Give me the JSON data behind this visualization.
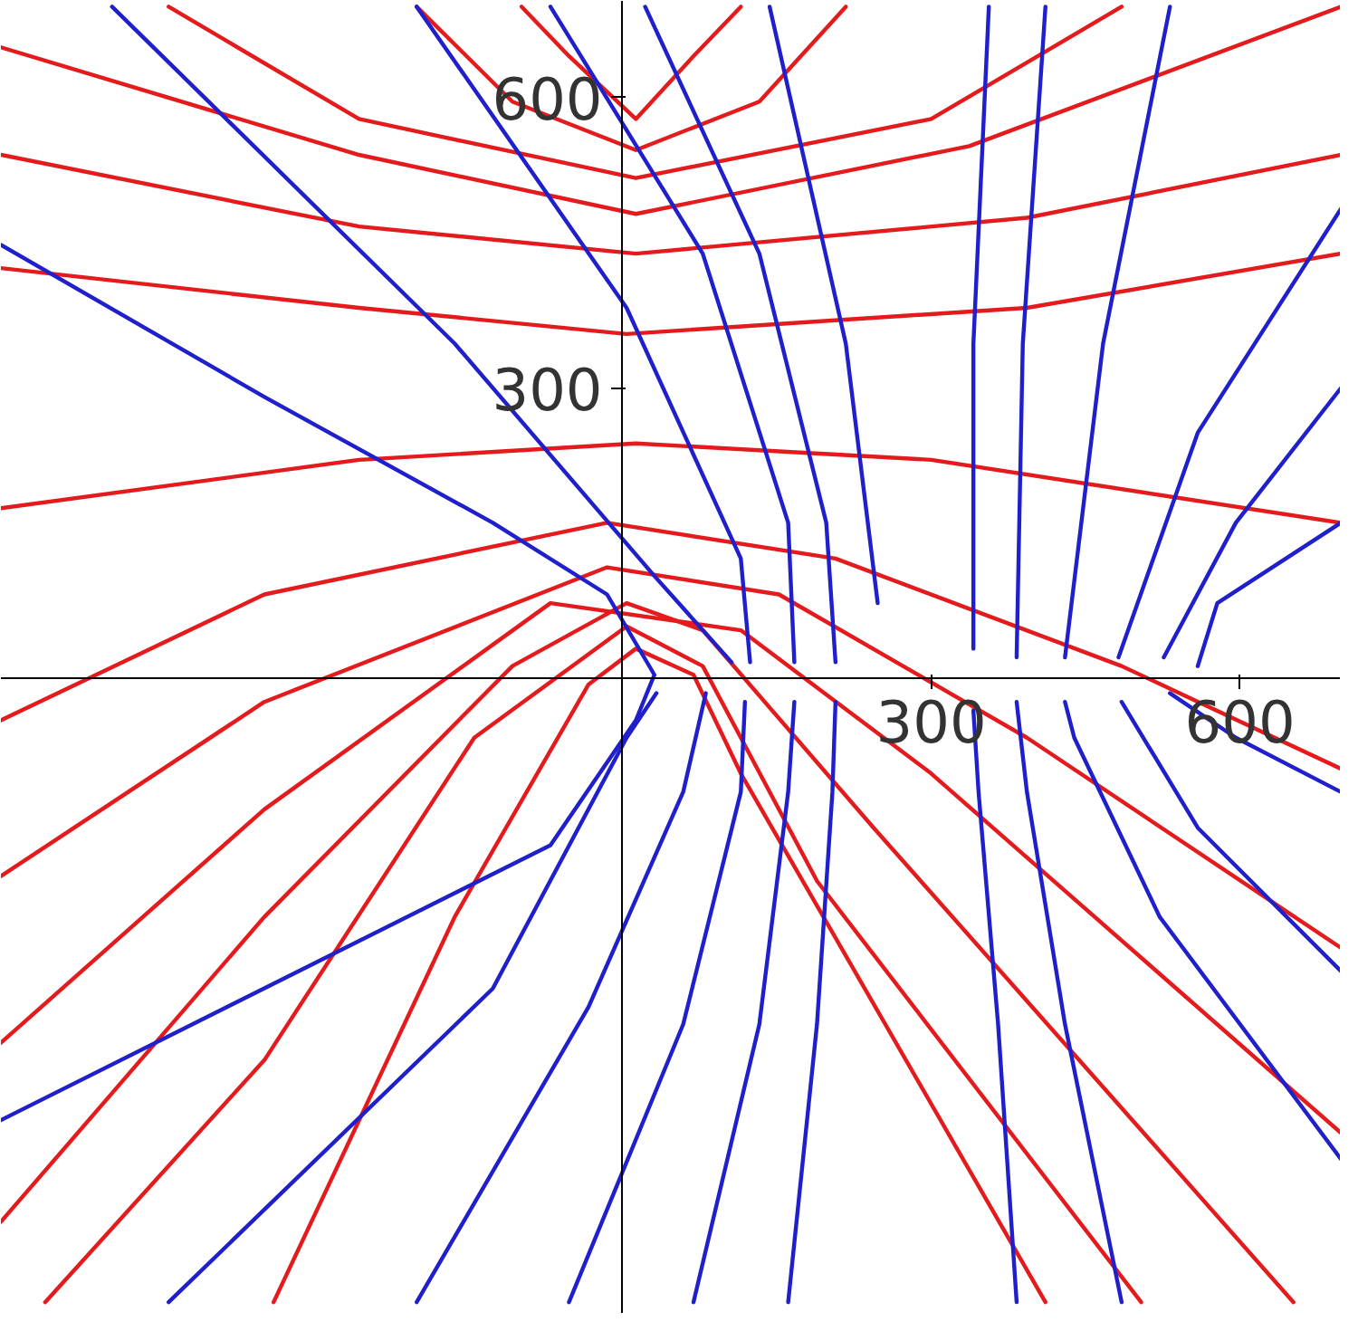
{
  "chart_data": {
    "type": "line",
    "xlim": [
      -604,
      698
    ],
    "ylim": [
      -656,
      700
    ],
    "xticks": [
      300,
      600
    ],
    "yticks": [
      300,
      600
    ],
    "series": [
      {
        "color": "#e41a1c",
        "x": [
          -98,
          -52,
          13,
          69,
          115
        ],
        "values": [
          694,
          643,
          578,
          643,
          694
        ]
      },
      {
        "color": "#e41a1c",
        "x": [
          -200,
          -107,
          13,
          133,
          217
        ],
        "values": [
          694,
          596,
          546,
          596,
          694
        ]
      },
      {
        "color": "#e41a1c",
        "x": [
          -441,
          -256,
          13,
          300,
          485
        ],
        "values": [
          694,
          578,
          517,
          578,
          694
        ]
      },
      {
        "color": "#e41a1c",
        "x": [
          -604,
          -256,
          13,
          337,
          698
        ],
        "values": [
          652,
          541,
          480,
          550,
          694
        ]
      },
      {
        "color": "#e41a1c",
        "x": [
          -604,
          -256,
          13,
          393,
          698
        ],
        "values": [
          541,
          467,
          439,
          476,
          541
        ]
      },
      {
        "color": "#e41a1c",
        "x": [
          -604,
          -256,
          4,
          393,
          698
        ],
        "values": [
          424,
          383,
          356,
          383,
          439
        ]
      },
      {
        "color": "#e41a1c",
        "x": [
          -604,
          -256,
          13,
          300,
          698
        ],
        "values": [
          176,
          226,
          243,
          226,
          161
        ]
      },
      {
        "color": "#e41a1c",
        "x": [
          -604,
          -348,
          -15,
          207,
          485,
          698
        ],
        "values": [
          -43,
          87,
          161,
          124,
          13,
          -93
        ]
      },
      {
        "color": "#e41a1c",
        "x": [
          -604,
          -348,
          -15,
          152,
          393,
          698
        ],
        "values": [
          -204,
          -24,
          115,
          87,
          -61,
          -278
        ]
      },
      {
        "color": "#e41a1c",
        "x": [
          -604,
          -348,
          -70,
          115,
          300,
          698
        ],
        "values": [
          -376,
          -135,
          78,
          50,
          -98,
          -469
        ]
      },
      {
        "color": "#e41a1c",
        "x": [
          -604,
          -348,
          -107,
          4,
          78,
          244,
          652
        ],
        "values": [
          -561,
          -246,
          13,
          78,
          50,
          -154,
          -644
        ]
      },
      {
        "color": "#e41a1c",
        "x": [
          -561,
          -348,
          -144,
          4,
          78,
          189,
          504
        ],
        "values": [
          -644,
          -394,
          -61,
          54,
          13,
          -209,
          -644
        ]
      },
      {
        "color": "#e41a1c",
        "x": [
          -339,
          -163,
          -33,
          13,
          69,
          115,
          411
        ],
        "values": [
          -644,
          -246,
          -6,
          31,
          4,
          -98,
          -644
        ]
      },
      {
        "color": "#1f1fcc",
        "x": [
          -604,
          -348,
          -126,
          -15,
          31,
          13,
          -70,
          -604
        ],
        "values": [
          448,
          291,
          161,
          87,
          4,
          -43,
          -172,
          -456
        ]
      },
      {
        "color": "#1f1fcc",
        "x": [
          -496,
          -163,
          31,
          106
        ],
        "values": [
          694,
          346,
          106,
          17
        ]
      },
      {
        "color": "#1f1fcc",
        "x": [
          -200,
          4,
          115,
          124
        ],
        "values": [
          694,
          383,
          124,
          17
        ]
      },
      {
        "color": "#1f1fcc",
        "x": [
          -70,
          78,
          161,
          167
        ],
        "values": [
          694,
          439,
          161,
          17
        ]
      },
      {
        "color": "#1f1fcc",
        "x": [
          22,
          133,
          198,
          207
        ],
        "values": [
          694,
          439,
          161,
          17
        ]
      },
      {
        "color": "#1f1fcc",
        "x": [
          143,
          217,
          248
        ],
        "values": [
          694,
          346,
          78
        ]
      },
      {
        "color": "#1f1fcc",
        "x": [
          356,
          341,
          341
        ],
        "values": [
          694,
          346,
          31
        ]
      },
      {
        "color": "#1f1fcc",
        "x": [
          411,
          389,
          383
        ],
        "values": [
          694,
          346,
          22
        ]
      },
      {
        "color": "#1f1fcc",
        "x": [
          532,
          467,
          430
        ],
        "values": [
          694,
          346,
          22
        ]
      },
      {
        "color": "#1f1fcc",
        "x": [
          698,
          559,
          482
        ],
        "values": [
          485,
          254,
          22
        ]
      },
      {
        "color": "#1f1fcc",
        "x": [
          698,
          596,
          526
        ],
        "values": [
          300,
          161,
          22
        ]
      },
      {
        "color": "#1f1fcc",
        "x": [
          698,
          578,
          559
        ],
        "values": [
          161,
          78,
          13
        ]
      },
      {
        "color": "#1f1fcc",
        "x": [
          -441,
          -126,
          4,
          33
        ],
        "values": [
          -644,
          -320,
          -61,
          -15
        ]
      },
      {
        "color": "#1f1fcc",
        "x": [
          -200,
          -33,
          59,
          81
        ],
        "values": [
          -644,
          -339,
          -117,
          -15
        ]
      },
      {
        "color": "#1f1fcc",
        "x": [
          -52,
          59,
          115,
          119
        ],
        "values": [
          -644,
          -357,
          -117,
          -24
        ]
      },
      {
        "color": "#1f1fcc",
        "x": [
          69,
          133,
          161,
          167
        ],
        "values": [
          -644,
          -357,
          -117,
          -24
        ]
      },
      {
        "color": "#1f1fcc",
        "x": [
          161,
          189,
          204,
          207
        ],
        "values": [
          -644,
          -357,
          -117,
          -24
        ]
      },
      {
        "color": "#1f1fcc",
        "x": [
          383,
          365,
          346,
          341
        ],
        "values": [
          -644,
          -357,
          -117,
          -33
        ]
      },
      {
        "color": "#1f1fcc",
        "x": [
          485,
          430,
          393,
          383
        ],
        "values": [
          -644,
          -357,
          -117,
          -24
        ]
      },
      {
        "color": "#1f1fcc",
        "x": [
          698,
          522,
          439,
          430
        ],
        "values": [
          -496,
          -246,
          -61,
          -24
        ]
      },
      {
        "color": "#1f1fcc",
        "x": [
          698,
          559,
          485
        ],
        "values": [
          -302,
          -154,
          -24
        ]
      },
      {
        "color": "#1f1fcc",
        "x": [
          698,
          596,
          532
        ],
        "values": [
          -117,
          -61,
          -15
        ]
      }
    ]
  }
}
